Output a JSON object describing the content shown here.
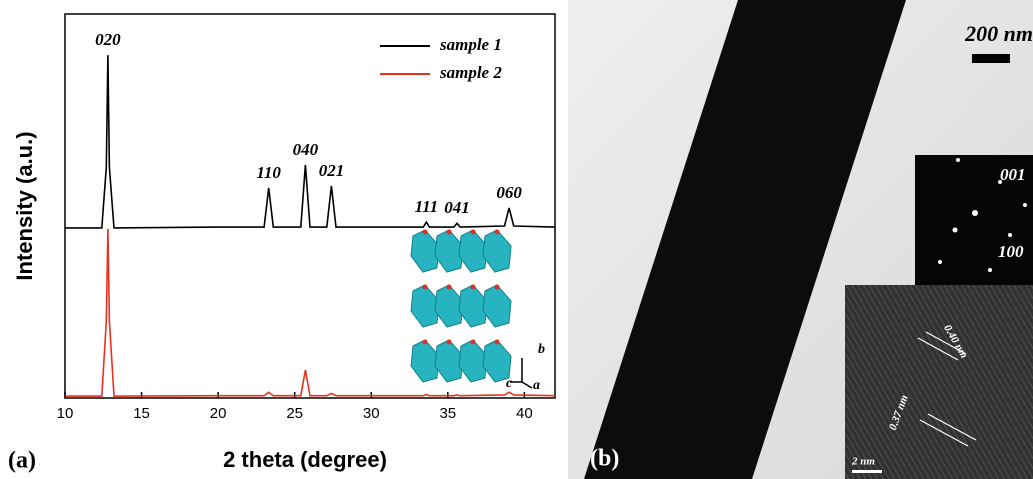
{
  "chart_data": {
    "type": "line",
    "panel_label": "(a)",
    "x_label": "2 theta (degree)",
    "y_label": "Intensity (a.u.)",
    "x": [
      10,
      12.4,
      12.7,
      12.8,
      12.9,
      13.2,
      20,
      23.0,
      23.3,
      23.6,
      25.4,
      25.7,
      26.0,
      27.1,
      27.4,
      27.7,
      33.4,
      33.6,
      33.8,
      35.4,
      35.6,
      35.8,
      38.7,
      39.0,
      39.3,
      42
    ],
    "series": [
      {
        "name": "sample 1",
        "color": "#000000",
        "values": [
          44.3,
          44.3,
          60,
          89.3,
          60,
          44.3,
          44.5,
          44.5,
          54.7,
          44.5,
          44.5,
          60.7,
          44.5,
          44.5,
          55.2,
          44.5,
          44.5,
          45.8,
          44.5,
          44.5,
          45.5,
          44.5,
          44.8,
          49.5,
          44.8,
          44.5
        ]
      },
      {
        "name": "sample 2",
        "color": "#e8321e",
        "values": [
          0.5,
          0.5,
          20,
          44,
          20,
          0.5,
          0.6,
          0.6,
          1.5,
          0.6,
          0.6,
          7.3,
          0.6,
          0.6,
          1.2,
          0.6,
          0.6,
          0.9,
          0.6,
          0.6,
          0.8,
          0.6,
          0.8,
          1.5,
          0.8,
          0.6
        ]
      }
    ],
    "annotations": [
      {
        "text": "020",
        "x": 12.8
      },
      {
        "text": "110",
        "x": 23.3
      },
      {
        "text": "040",
        "x": 25.7
      },
      {
        "text": "021",
        "x": 27.4
      },
      {
        "text": "111",
        "x": 33.6
      },
      {
        "text": "041",
        "x": 35.6
      },
      {
        "text": "060",
        "x": 39.0
      }
    ],
    "xlim": [
      10,
      42
    ],
    "xticks": [
      10,
      15,
      20,
      25,
      30,
      35,
      40
    ],
    "ylim": [
      0,
      100
    ],
    "legend": "upper right"
  },
  "structure_inset": {
    "axes": [
      "b",
      "c",
      "a"
    ]
  },
  "tem_image": {
    "panel_label": "(b)",
    "scale_bar": "200 nm",
    "saed_labels": [
      "001",
      "100"
    ],
    "hrtem_labels": [
      "0.40 nm",
      "0.37 nm"
    ],
    "hrtem_scale": "2 nm"
  }
}
